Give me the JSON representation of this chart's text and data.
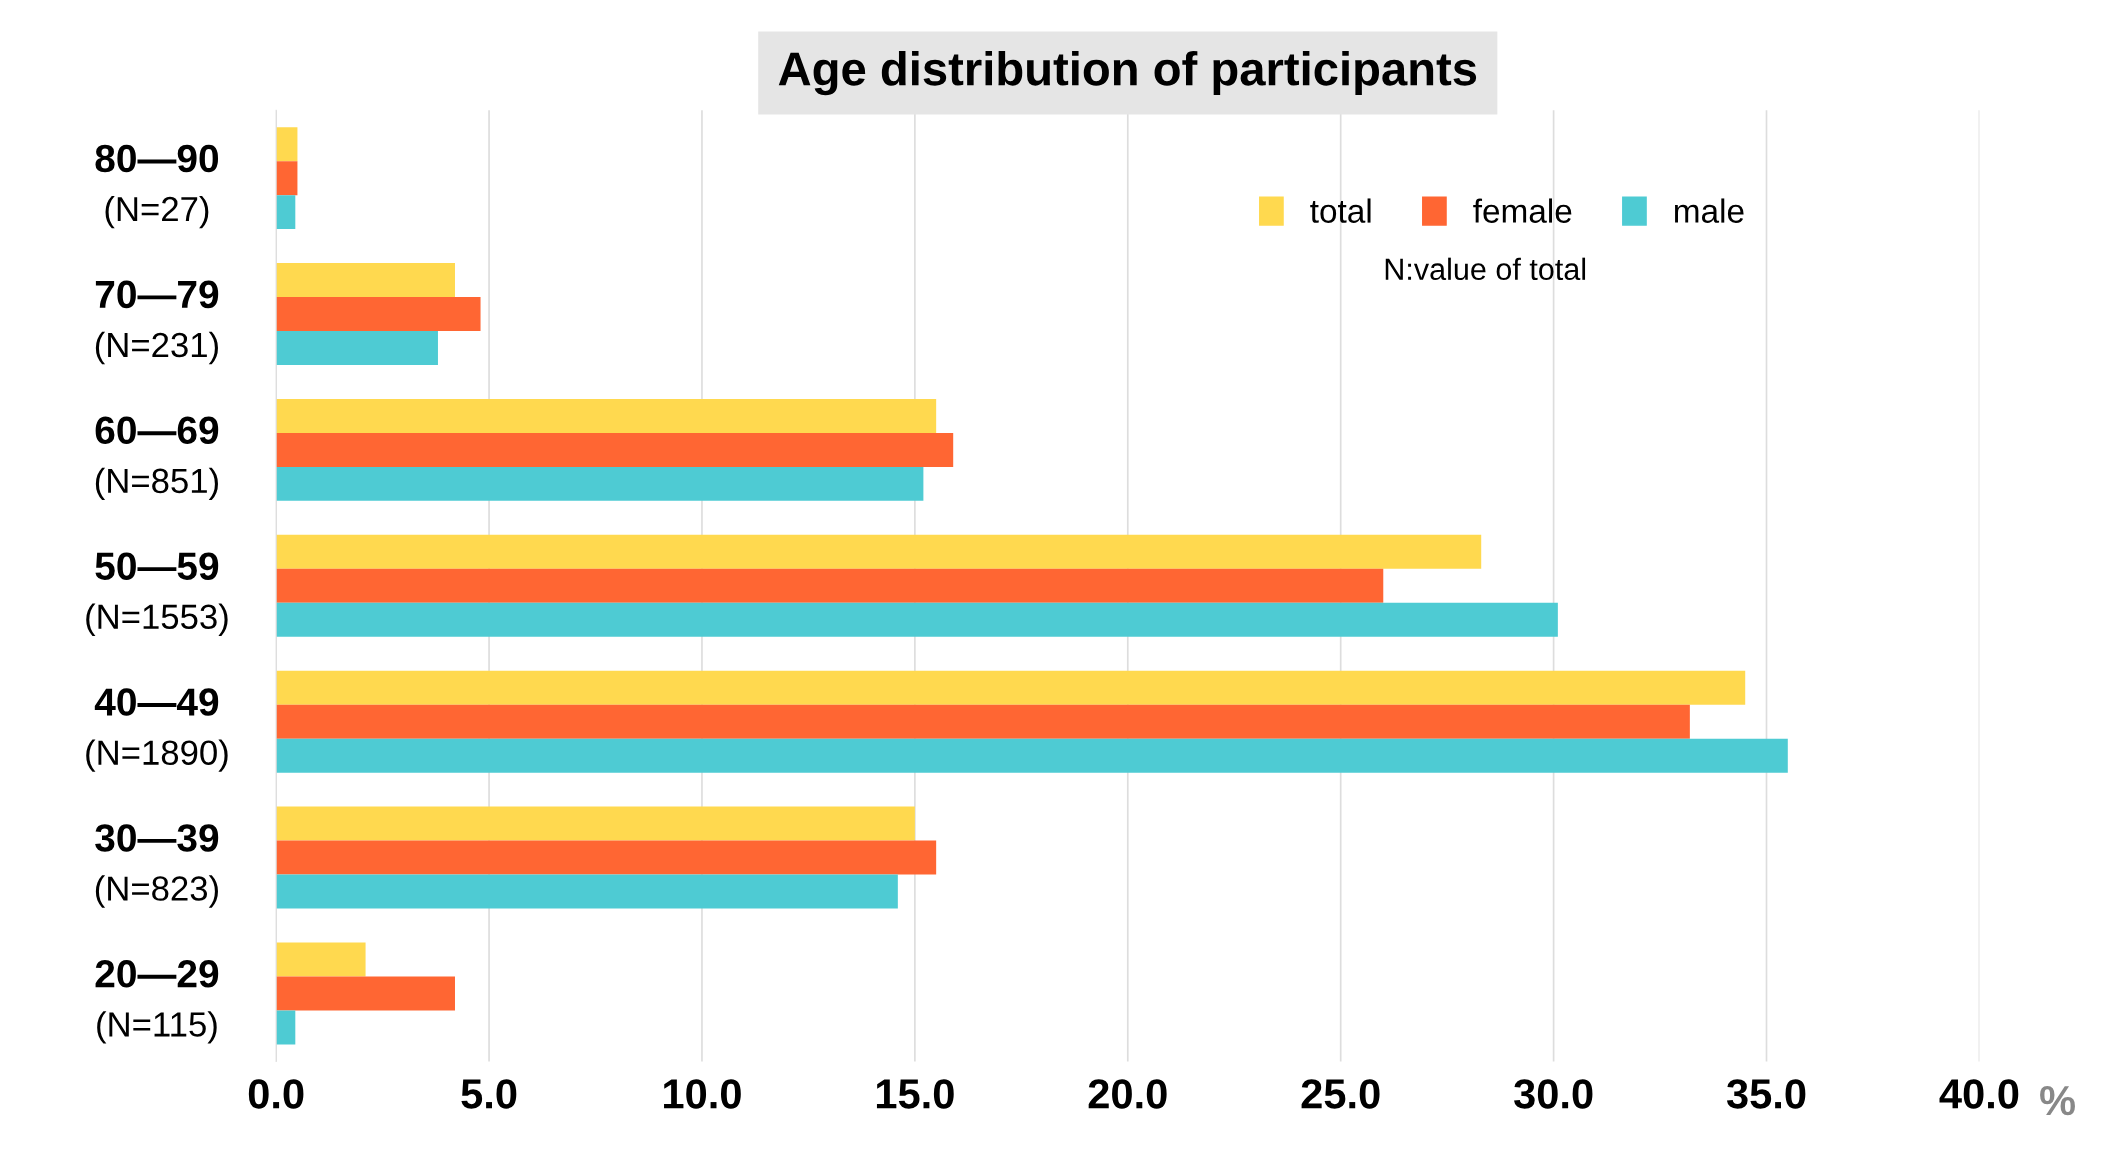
{
  "chart_data": {
    "type": "bar",
    "orientation": "horizontal",
    "title": "Age distribution of participants",
    "xlabel": "%",
    "categories": [
      "80—90\n(N=27)",
      "70—79\n(N=231)",
      "60—69\n(N=851)",
      "50—59\n(N=1553)",
      "40—49\n(N=1890)",
      "30—39\n(N=823)",
      "20—29\n(N=115)"
    ],
    "series": [
      {
        "name": "total",
        "color": "#ffd94f",
        "values": [
          0.5,
          4.2,
          15.5,
          28.3,
          34.5,
          15.0,
          2.1
        ]
      },
      {
        "name": "female",
        "color": "#ff6633",
        "values": [
          0.5,
          4.8,
          15.9,
          26.0,
          33.2,
          15.5,
          4.2
        ]
      },
      {
        "name": "male",
        "color": "#4ecbd3",
        "values": [
          0.45,
          3.8,
          15.2,
          30.1,
          35.5,
          14.6,
          0.45
        ]
      }
    ],
    "xlim": [
      0,
      40
    ],
    "xticks": [
      {
        "value": 0,
        "label": "0.0"
      },
      {
        "value": 5,
        "label": "5.0"
      },
      {
        "value": 10,
        "label": "10.0"
      },
      {
        "value": 15,
        "label": "15.0"
      },
      {
        "value": 20,
        "label": "20.0"
      },
      {
        "value": 25,
        "label": "25.0"
      },
      {
        "value": 30,
        "label": "30.0"
      },
      {
        "value": 35,
        "label": "35.0"
      },
      {
        "value": 40,
        "label": "40.0"
      }
    ],
    "grid": "x",
    "legend": "top right",
    "annotations": [
      "N:value of total"
    ]
  }
}
